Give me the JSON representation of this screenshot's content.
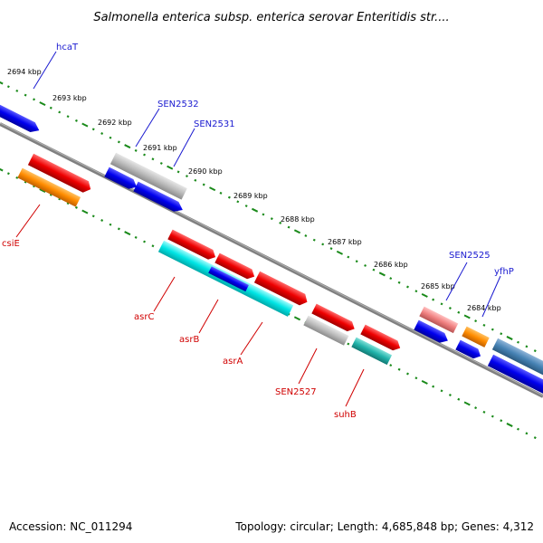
{
  "title": "Salmonella enterica subsp. enterica serovar Enteritidis str....",
  "footer": {
    "accession": "Accession: NC_011294",
    "topology": "Topology: circular; Length: 4,685,848 bp; Genes: 4,312"
  },
  "ticks": [
    "2694 kbp",
    "2693 kbp",
    "2692 kbp",
    "2691 kbp",
    "2690 kbp",
    "2689 kbp",
    "2688 kbp",
    "2687 kbp",
    "2686 kbp",
    "2685 kbp",
    "2684 kbp"
  ],
  "labels_top": [
    "hcaT",
    "SEN2532",
    "SEN2531",
    "SEN2525",
    "yfhP"
  ],
  "labels_bottom": [
    "csiE",
    "asrC",
    "asrB",
    "asrA",
    "SEN2527",
    "suhB"
  ],
  "colors": {
    "backbone": "#808080",
    "tick_green": "#1a8a1a",
    "blue": "#0000ee",
    "red": "#ee0000",
    "orange": "#ff8c00",
    "gray": "#b5b5b5",
    "cyan": "#00e5e5",
    "teal": "#20b2aa",
    "pink": "#f08080",
    "steelblue": "#4682b4"
  }
}
